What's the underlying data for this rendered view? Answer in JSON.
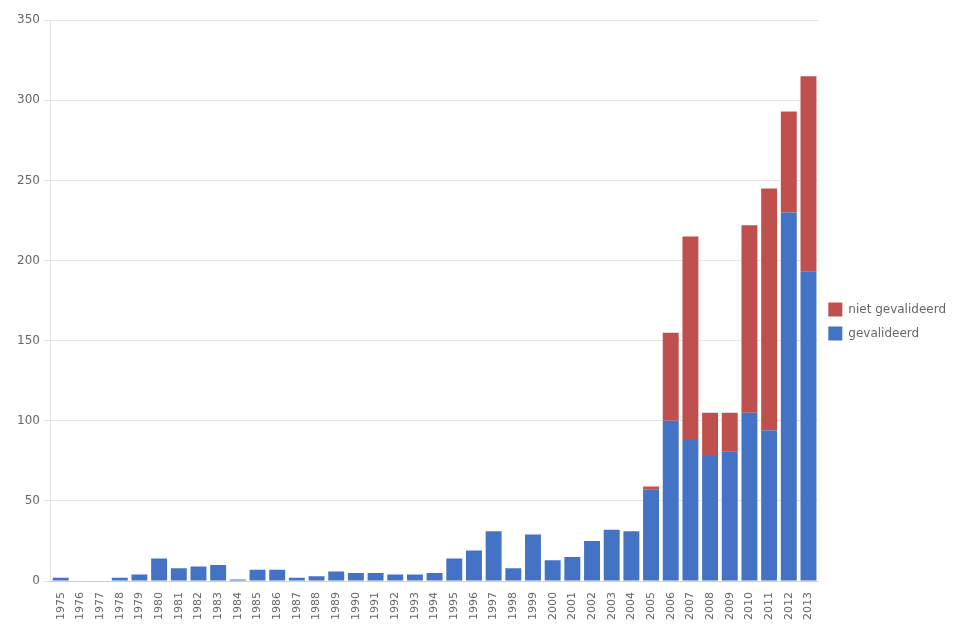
{
  "chart_data": {
    "type": "bar",
    "stacked": true,
    "categories": [
      1975,
      1976,
      1977,
      1978,
      1979,
      1980,
      1981,
      1982,
      1983,
      1984,
      1985,
      1986,
      1987,
      1988,
      1989,
      1990,
      1991,
      1992,
      1993,
      1994,
      1995,
      1996,
      1997,
      1998,
      1999,
      2000,
      2001,
      2002,
      2003,
      2004,
      2005,
      2006,
      2007,
      2008,
      2009,
      2010,
      2011,
      2012,
      2013
    ],
    "series": [
      {
        "name": "gevalideerd",
        "color": "#4472C4",
        "values": [
          2,
          0,
          0,
          2,
          4,
          14,
          8,
          9,
          10,
          1,
          7,
          7,
          2,
          3,
          6,
          5,
          5,
          4,
          4,
          5,
          14,
          19,
          31,
          8,
          29,
          13,
          15,
          25,
          32,
          31,
          57,
          100,
          88,
          78,
          81,
          105,
          94,
          230,
          193
        ]
      },
      {
        "name": "niet gevalideerd",
        "color": "#C0504D",
        "values": [
          0,
          0,
          0,
          0,
          0,
          0,
          0,
          0,
          0,
          0,
          0,
          0,
          0,
          0,
          0,
          0,
          0,
          0,
          0,
          0,
          0,
          0,
          0,
          0,
          0,
          0,
          0,
          0,
          0,
          0,
          2,
          55,
          127,
          27,
          24,
          117,
          151,
          63,
          122
        ]
      }
    ],
    "ylim": [
      0,
      350
    ],
    "yticks": [
      0,
      50,
      100,
      150,
      200,
      250,
      300,
      350
    ],
    "grid": true,
    "legend": "right"
  }
}
